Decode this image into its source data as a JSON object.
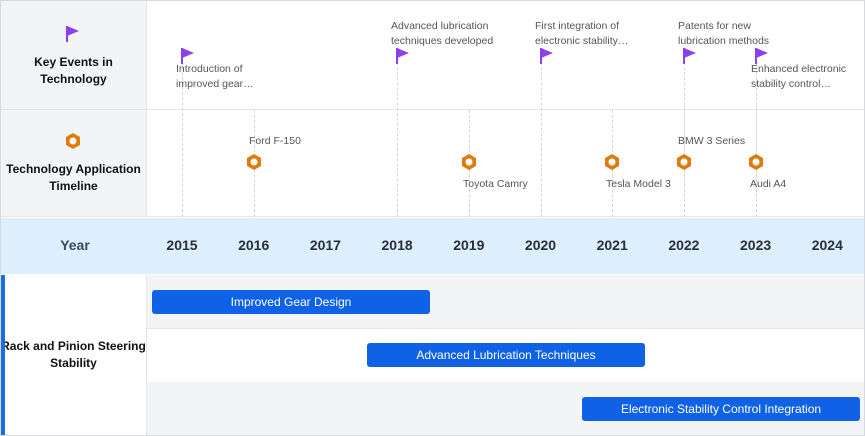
{
  "labels": {
    "key_events": "Key Events in Technology",
    "applications": "Technology Application Timeline",
    "year": "Year",
    "gantt_row": "Rack and Pinion Steering Stability"
  },
  "years": [
    "2015",
    "2016",
    "2017",
    "2018",
    "2019",
    "2020",
    "2021",
    "2022",
    "2023",
    "2024"
  ],
  "events": [
    {
      "year": "2015",
      "text": "Introduction of\nimproved gear…"
    },
    {
      "year": "2018",
      "text": "Advanced lubrication\ntechniques developed"
    },
    {
      "year": "2020",
      "text": "First integration of\nelectronic stability…"
    },
    {
      "year": "2022",
      "text": "Patents for new\nlubrication methods"
    },
    {
      "year": "2023",
      "text": "Enhanced electronic\nstability control…"
    }
  ],
  "applications": [
    {
      "year": "2016",
      "text": "Ford F-150"
    },
    {
      "year": "2019",
      "text": "Toyota Camry"
    },
    {
      "year": "2021",
      "text": "Tesla Model 3"
    },
    {
      "year": "2022",
      "text": "BMW 3 Series"
    },
    {
      "year": "2023",
      "text": "Audi A4"
    }
  ],
  "bars": [
    {
      "label": "Improved Gear Design"
    },
    {
      "label": "Advanced Lubrication Techniques"
    },
    {
      "label": "Electronic Stability Control Integration"
    }
  ],
  "colors": {
    "flag": "#8b3ff0",
    "hex": "#e07b0c",
    "bar": "#0f62e6",
    "yearbar": "#ddeefc"
  }
}
